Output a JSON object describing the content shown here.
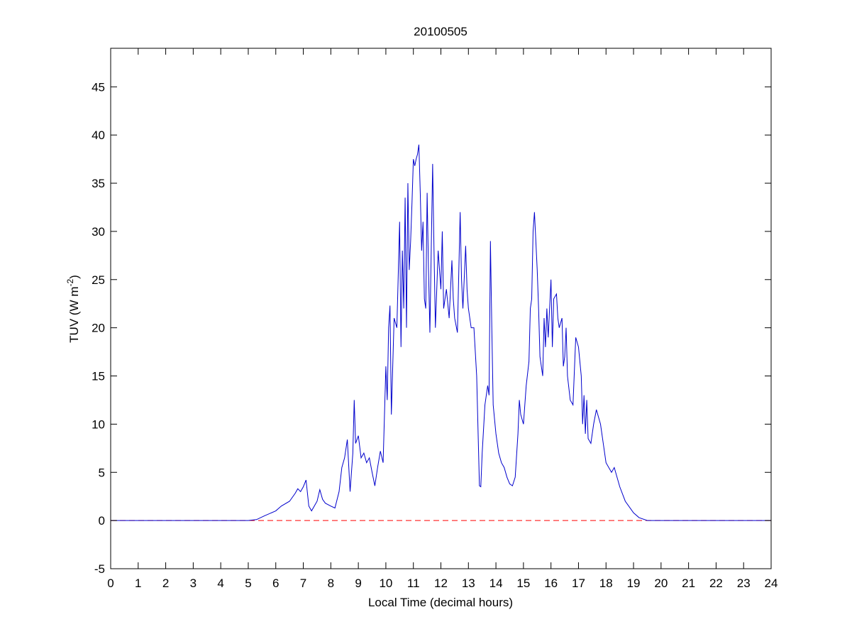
{
  "chart_data": {
    "type": "line",
    "title": "20100505",
    "xlabel": "Local Time (decimal hours)",
    "ylabel": "TUV (W m",
    "ylabel_sup": "-2",
    "ylabel_end": ")",
    "xlim": [
      0,
      24
    ],
    "ylim": [
      -5,
      49
    ],
    "xticks": [
      0,
      1,
      2,
      3,
      4,
      5,
      6,
      7,
      8,
      9,
      10,
      11,
      12,
      13,
      14,
      15,
      16,
      17,
      18,
      19,
      20,
      21,
      22,
      23,
      24
    ],
    "yticks": [
      -5,
      0,
      5,
      10,
      15,
      20,
      25,
      30,
      35,
      40,
      45
    ],
    "grid": false,
    "reference_line": {
      "value": 0,
      "color": "#ff0000",
      "style": "dashed"
    },
    "x": [
      0,
      5.0,
      5.3,
      5.6,
      6.0,
      6.2,
      6.5,
      6.7,
      6.8,
      6.9,
      7.0,
      7.1,
      7.2,
      7.3,
      7.5,
      7.6,
      7.7,
      7.8,
      8.0,
      8.15,
      8.3,
      8.4,
      8.5,
      8.6,
      8.7,
      8.8,
      8.85,
      8.9,
      9.0,
      9.1,
      9.2,
      9.3,
      9.4,
      9.5,
      9.6,
      9.7,
      9.8,
      9.9,
      10.0,
      10.05,
      10.1,
      10.15,
      10.2,
      10.3,
      10.4,
      10.5,
      10.55,
      10.6,
      10.65,
      10.7,
      10.75,
      10.8,
      10.85,
      10.9,
      10.95,
      11.0,
      11.05,
      11.1,
      11.15,
      11.2,
      11.25,
      11.3,
      11.35,
      11.4,
      11.45,
      11.5,
      11.55,
      11.6,
      11.7,
      11.75,
      11.8,
      11.9,
      12.0,
      12.05,
      12.1,
      12.2,
      12.3,
      12.4,
      12.45,
      12.5,
      12.6,
      12.7,
      12.75,
      12.8,
      12.9,
      12.95,
      13.0,
      13.1,
      13.2,
      13.3,
      13.4,
      13.45,
      13.5,
      13.6,
      13.7,
      13.75,
      13.8,
      13.85,
      13.9,
      14.0,
      14.1,
      14.2,
      14.3,
      14.4,
      14.5,
      14.6,
      14.7,
      14.8,
      14.85,
      14.9,
      15.0,
      15.1,
      15.2,
      15.25,
      15.3,
      15.35,
      15.4,
      15.45,
      15.5,
      15.55,
      15.6,
      15.7,
      15.75,
      15.8,
      15.85,
      15.9,
      16.0,
      16.05,
      16.1,
      16.2,
      16.25,
      16.3,
      16.4,
      16.45,
      16.5,
      16.55,
      16.6,
      16.7,
      16.8,
      16.9,
      17.0,
      17.1,
      17.15,
      17.2,
      17.25,
      17.3,
      17.35,
      17.45,
      17.55,
      17.65,
      17.8,
      17.9,
      18.0,
      18.2,
      18.3,
      18.5,
      18.7,
      19.0,
      19.2,
      19.5,
      24
    ],
    "series": [
      {
        "name": "TUV",
        "color": "#0000cc",
        "values": [
          0,
          0,
          0.1,
          0.5,
          1.0,
          1.5,
          2.0,
          2.8,
          3.3,
          3.0,
          3.5,
          4.2,
          1.5,
          1.0,
          2.0,
          3.2,
          2.2,
          1.8,
          1.5,
          1.3,
          3.0,
          5.5,
          6.5,
          8.4,
          3.0,
          7.0,
          12.5,
          8.0,
          8.8,
          6.5,
          7.0,
          6.0,
          6.5,
          5.0,
          3.6,
          5.5,
          7.2,
          6.0,
          16.0,
          12.5,
          20,
          22.3,
          11.0,
          21,
          20,
          31,
          18,
          28,
          22,
          33.5,
          20,
          35,
          26,
          29,
          33,
          37.5,
          36.8,
          37.5,
          38,
          39,
          34,
          28,
          31,
          23,
          22,
          34,
          26,
          19.5,
          37,
          28,
          20,
          28,
          24,
          30,
          22,
          24,
          21,
          27,
          23,
          21,
          19.5,
          32,
          25,
          22,
          28.5,
          24,
          22,
          20,
          20,
          15,
          3.6,
          3.5,
          7,
          12,
          14,
          13,
          29,
          20,
          12,
          9,
          7,
          6,
          5.5,
          4.5,
          3.8,
          3.6,
          4.5,
          9,
          12.5,
          11,
          10,
          14,
          16.5,
          22,
          23,
          30,
          32,
          29,
          26,
          22,
          17,
          15,
          21,
          18,
          22,
          19,
          25,
          18,
          23,
          23.5,
          21,
          20,
          21,
          16,
          17,
          20,
          15,
          12.5,
          12,
          19,
          18,
          15,
          10,
          13,
          9,
          12.5,
          8.5,
          8,
          10,
          11.5,
          10,
          8,
          6,
          5,
          5.5,
          3.5,
          2,
          0.8,
          0.3,
          0,
          0
        ]
      }
    ]
  }
}
